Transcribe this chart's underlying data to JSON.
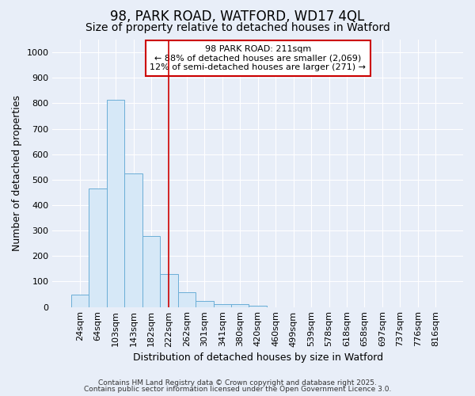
{
  "title1": "98, PARK ROAD, WATFORD, WD17 4QL",
  "title2": "Size of property relative to detached houses in Watford",
  "xlabel": "Distribution of detached houses by size in Watford",
  "ylabel": "Number of detached properties",
  "categories": [
    "24sqm",
    "64sqm",
    "103sqm",
    "143sqm",
    "182sqm",
    "222sqm",
    "262sqm",
    "301sqm",
    "341sqm",
    "380sqm",
    "420sqm",
    "460sqm",
    "499sqm",
    "539sqm",
    "578sqm",
    "618sqm",
    "658sqm",
    "697sqm",
    "737sqm",
    "776sqm",
    "816sqm"
  ],
  "values": [
    47,
    465,
    815,
    525,
    280,
    128,
    57,
    25,
    10,
    10,
    5,
    0,
    0,
    0,
    0,
    0,
    0,
    0,
    0,
    0,
    0
  ],
  "bar_color": "#d6e8f7",
  "bar_edge_color": "#6baed6",
  "vline_x_index": 5,
  "vline_color": "#cc0000",
  "annotation_title": "98 PARK ROAD: 211sqm",
  "annotation_line1": "← 88% of detached houses are smaller (2,069)",
  "annotation_line2": "12% of semi-detached houses are larger (271) →",
  "annotation_box_color": "#cc0000",
  "annotation_bg": "#ffffff",
  "ylim": [
    0,
    1050
  ],
  "yticks": [
    0,
    100,
    200,
    300,
    400,
    500,
    600,
    700,
    800,
    900,
    1000
  ],
  "background_color": "#e8eef8",
  "plot_bg": "#e8eef8",
  "grid_color": "#ffffff",
  "footer1": "Contains HM Land Registry data © Crown copyright and database right 2025.",
  "footer2": "Contains public sector information licensed under the Open Government Licence 3.0.",
  "title1_fontsize": 12,
  "title2_fontsize": 10,
  "tick_fontsize": 8,
  "ylabel_fontsize": 9,
  "xlabel_fontsize": 9,
  "footer_fontsize": 6.5
}
